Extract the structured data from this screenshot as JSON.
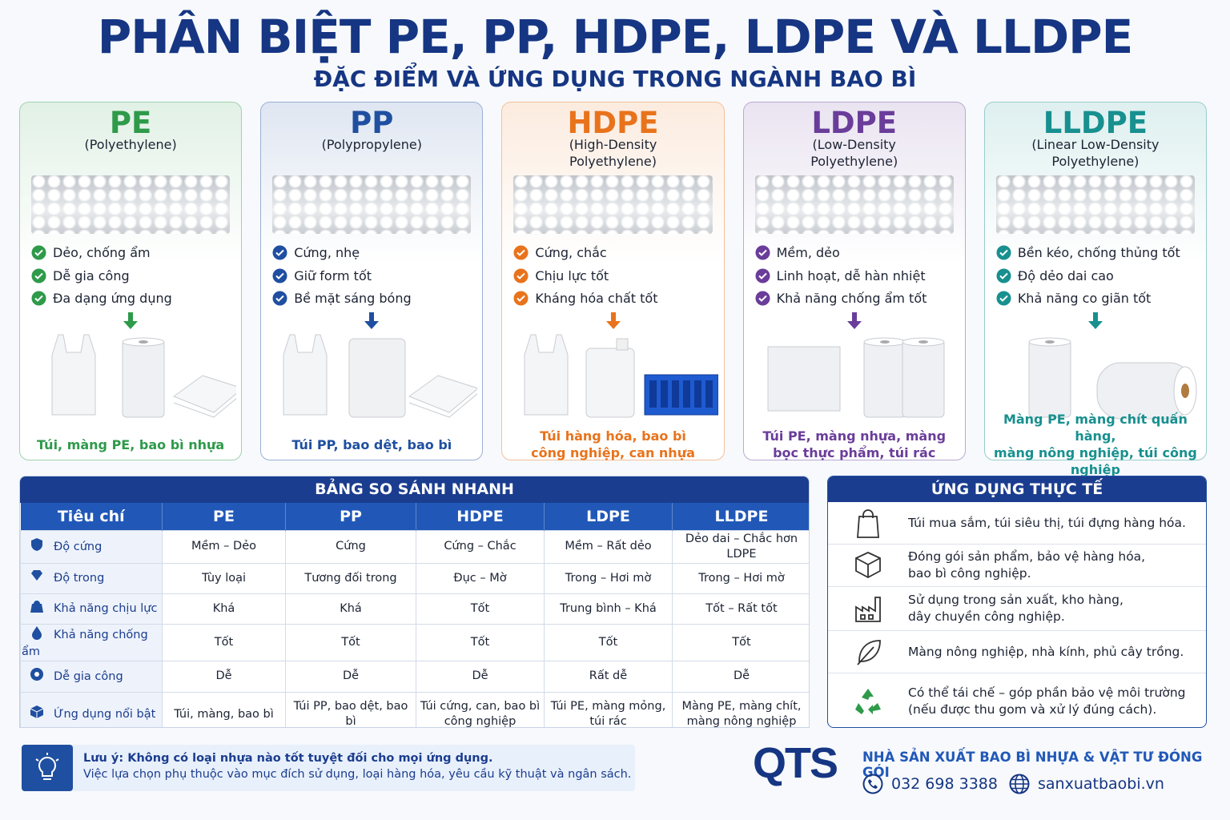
{
  "header": {
    "title": "PHÂN BIỆT PE, PP, HDPE, LDPE VÀ LLDPE",
    "subtitle": "ĐẶC ĐIỂM VÀ ỨNG DỤNG TRONG NGÀNH BAO BÌ"
  },
  "cards": [
    {
      "name": "PE",
      "full_name": "(Polyethylene)",
      "color": "#2e9a4a",
      "features": [
        "Dẻo, chống ẩm",
        "Dễ gia công",
        "Đa dạng ứng dụng"
      ],
      "uses": "Túi, màng PE, bao bì nhựa"
    },
    {
      "name": "PP",
      "full_name": "(Polypropylene)",
      "color": "#1f4fa0",
      "features": [
        "Cứng, nhẹ",
        "Giữ form tốt",
        "Bề mặt sáng bóng"
      ],
      "uses": "Túi PP, bao dệt, bao bì"
    },
    {
      "name": "HDPE",
      "full_name": "(High-Density\nPolyethylene)",
      "color": "#e8731c",
      "features": [
        "Cứng, chắc",
        "Chịu lực tốt",
        "Kháng hóa chất tốt"
      ],
      "uses": "Túi hàng hóa, bao bì\ncông nghiệp, can nhựa"
    },
    {
      "name": "LDPE",
      "full_name": "(Low-Density\nPolyethylene)",
      "color": "#6a3d9a",
      "features": [
        "Mềm, dẻo",
        "Linh hoạt, dễ hàn nhiệt",
        "Khả năng chống ẩm tốt"
      ],
      "uses": "Túi PE, màng nhựa, màng\nbọc thực phẩm, túi rác"
    },
    {
      "name": "LLDPE",
      "full_name": "(Linear Low-Density\nPolyethylene)",
      "color": "#17908f",
      "features": [
        "Bền kéo, chống thủng tốt",
        "Độ dẻo dai cao",
        "Khả năng co giãn tốt"
      ],
      "uses": "Màng PE, màng chít quấn hàng,\nmàng nông nghiệp, túi công nghiệp"
    }
  ],
  "comparison": {
    "title": "BẢNG SO SÁNH NHANH",
    "header": [
      "Tiêu chí",
      "PE",
      "PP",
      "HDPE",
      "LDPE",
      "LLDPE"
    ],
    "rows": [
      [
        "Độ cứng",
        "Mềm – Dẻo",
        "Cứng",
        "Cứng – Chắc",
        "Mềm – Rất dẻo",
        "Dẻo dai – Chắc hơn LDPE"
      ],
      [
        "Độ trong",
        "Tùy loại",
        "Tương đối trong",
        "Đục – Mờ",
        "Trong – Hơi mờ",
        "Trong – Hơi mờ"
      ],
      [
        "Khả năng chịu lực",
        "Khá",
        "Khá",
        "Tốt",
        "Trung bình – Khá",
        "Tốt – Rất tốt"
      ],
      [
        "Khả năng chống ẩm",
        "Tốt",
        "Tốt",
        "Tốt",
        "Tốt",
        "Tốt"
      ],
      [
        "Dễ gia công",
        "Dễ",
        "Dễ",
        "Dễ",
        "Rất dễ",
        "Dễ"
      ],
      [
        "Ứng dụng nổi bật",
        "Túi, màng, bao bì",
        "Túi PP, bao dệt, bao bì",
        "Túi cứng, can, bao bì\ncông nghiệp",
        "Túi PE, màng mỏng,\ntúi rác",
        "Màng PE, màng chít,\nmàng nông nghiệp"
      ]
    ]
  },
  "applications": {
    "title": "ỨNG DỤNG THỰC TẾ",
    "items": [
      "Túi mua sắm, túi siêu thị, túi đựng hàng hóa.",
      "Đóng gói sản phẩm, bảo vệ hàng hóa,\nbao bì công nghiệp.",
      "Sử dụng trong sản xuất, kho hàng,\ndây chuyền công nghiệp.",
      "Màng nông nghiệp, nhà kính, phủ cây trồng.",
      "Có thể tái chế – góp phần bảo vệ môi trường\n(nếu được thu gom và xử lý đúng cách)."
    ]
  },
  "note": {
    "title": "Lưu ý: Không có loại nhựa nào tốt tuyệt đối cho mọi ứng dụng.",
    "text": "Việc lựa chọn phụ thuộc vào mục đích sử dụng, loại hàng hóa, yêu cầu kỹ thuật và ngân sách."
  },
  "brand": {
    "logo": "QTS",
    "tagline": "NHÀ SẢN XUẤT BAO BÌ NHỰA & VẬT TƯ ĐÓNG GÓI",
    "phone": "032 698 3388",
    "website": "sanxuatbaobi.vn"
  }
}
